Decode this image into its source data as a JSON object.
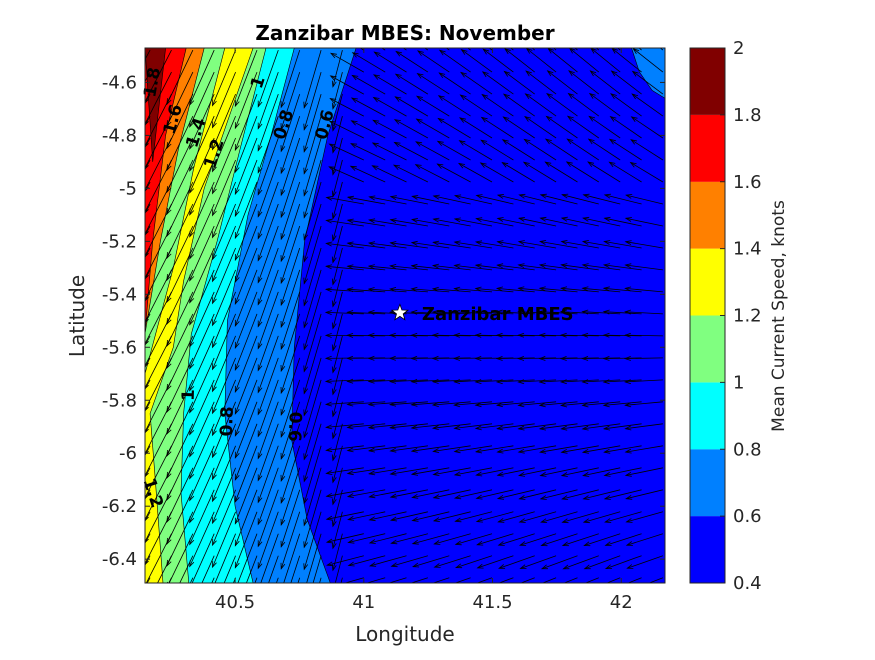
{
  "chart_data": {
    "type": "contourf-quiver",
    "title": "Zanzibar MBES: November",
    "xlabel": "Longitude",
    "ylabel": "Latitude",
    "xlim": [
      40.15,
      42.17
    ],
    "ylim": [
      -6.49,
      -4.47
    ],
    "xticks": [
      40.5,
      41,
      41.5,
      42
    ],
    "xtick_labels": [
      "40.5",
      "41",
      "41.5",
      "42"
    ],
    "yticks": [
      -4.6,
      -4.8,
      -5,
      -5.2,
      -5.4,
      -5.6,
      -5.8,
      -6,
      -6.2,
      -6.4
    ],
    "ytick_labels": [
      "-4.6",
      "-4.8",
      "-5",
      "-5.2",
      "-5.4",
      "-5.6",
      "-5.8",
      "-6",
      "-6.2",
      "-6.4"
    ],
    "colorbar": {
      "label": "Mean Current Speed, knots",
      "levels": [
        0.4,
        0.6,
        0.8,
        1,
        1.2,
        1.4,
        1.6,
        1.8,
        2
      ],
      "tick_labels": [
        "0.4",
        "0.6",
        "0.8",
        "1",
        "1.2",
        "1.4",
        "1.6",
        "1.8",
        "2"
      ],
      "colors": [
        "#0000ff",
        "#0080ff",
        "#00ffff",
        "#80ff80",
        "#ffff00",
        "#ff8000",
        "#ff0000",
        "#800000"
      ]
    },
    "contours": [
      {
        "level": 1.8,
        "label": "1.8",
        "color": "#800000",
        "points": [
          [
            40.15,
            -4.47
          ],
          [
            40.23,
            -4.47
          ],
          [
            40.18,
            -4.9
          ]
        ]
      },
      {
        "level": 1.6,
        "label": "1.6",
        "color": "#ff0000",
        "points": [
          [
            40.15,
            -4.47
          ],
          [
            40.31,
            -4.47
          ],
          [
            40.23,
            -4.8
          ],
          [
            40.18,
            -5.2
          ],
          [
            40.15,
            -5.55
          ]
        ]
      },
      {
        "level": 1.4,
        "label": "1.4",
        "color": "#ff8000",
        "points": [
          [
            40.15,
            -4.47
          ],
          [
            40.38,
            -4.47
          ],
          [
            40.28,
            -4.85
          ],
          [
            40.21,
            -5.2
          ],
          [
            40.15,
            -5.55
          ]
        ]
      },
      {
        "level": 1.2,
        "label": "1.2",
        "color": "#ffff00",
        "points": [
          [
            40.15,
            -4.47
          ],
          [
            40.46,
            -4.47
          ],
          [
            40.34,
            -4.92
          ],
          [
            40.26,
            -5.3
          ],
          [
            40.15,
            -5.7
          ],
          [
            40.15,
            -6.49
          ],
          [
            40.22,
            -6.49
          ],
          [
            40.19,
            -6.1
          ],
          [
            40.17,
            -5.85
          ],
          [
            40.26,
            -5.6
          ],
          [
            40.3,
            -5.35
          ],
          [
            40.38,
            -5.0
          ],
          [
            40.48,
            -4.72
          ],
          [
            40.57,
            -4.47
          ]
        ]
      },
      {
        "level": 1.0,
        "label": "1",
        "color": "#80ff80",
        "points": [
          [
            40.15,
            -4.47
          ],
          [
            40.62,
            -4.47
          ],
          [
            40.52,
            -4.85
          ],
          [
            40.43,
            -5.2
          ],
          [
            40.33,
            -5.55
          ],
          [
            40.3,
            -5.85
          ],
          [
            40.29,
            -6.15
          ],
          [
            40.32,
            -6.49
          ],
          [
            40.15,
            -6.49
          ]
        ]
      },
      {
        "level": 0.8,
        "label": "0.8",
        "color": "#00ffff",
        "points": [
          [
            40.15,
            -4.47
          ],
          [
            40.73,
            -4.47
          ],
          [
            40.64,
            -4.8
          ],
          [
            40.55,
            -5.1
          ],
          [
            40.47,
            -5.5
          ],
          [
            40.46,
            -5.85
          ],
          [
            40.5,
            -6.2
          ],
          [
            40.57,
            -6.49
          ],
          [
            40.15,
            -6.49
          ]
        ]
      },
      {
        "level": 0.6,
        "label": "0.6",
        "color": "#0080ff",
        "points": [
          [
            40.15,
            -4.47
          ],
          [
            40.97,
            -4.47
          ],
          [
            40.86,
            -4.8
          ],
          [
            40.77,
            -5.2
          ],
          [
            40.73,
            -5.6
          ],
          [
            40.72,
            -5.95
          ],
          [
            40.78,
            -6.25
          ],
          [
            40.87,
            -6.49
          ],
          [
            40.15,
            -6.49
          ]
        ]
      },
      {
        "level": 0.6,
        "label": "",
        "color": "#0080ff",
        "points": [
          [
            42.17,
            -4.66
          ],
          [
            42.12,
            -4.63
          ],
          [
            42.07,
            -4.56
          ],
          [
            42.04,
            -4.47
          ],
          [
            42.17,
            -4.47
          ]
        ]
      }
    ],
    "contour_labels": [
      {
        "text": "1.8",
        "x": 40.18,
        "y": -4.6,
        "angle": -80
      },
      {
        "text": "1.6",
        "x": 40.26,
        "y": -4.74,
        "angle": -75
      },
      {
        "text": "1.4",
        "x": 40.35,
        "y": -4.79,
        "angle": -72
      },
      {
        "text": "1.2",
        "x": 40.42,
        "y": -4.87,
        "angle": -72
      },
      {
        "text": "1",
        "x": 40.59,
        "y": -4.6,
        "angle": -72
      },
      {
        "text": "0.8",
        "x": 40.69,
        "y": -4.76,
        "angle": -72
      },
      {
        "text": "0.6",
        "x": 40.85,
        "y": -4.76,
        "angle": -75
      },
      {
        "text": "1",
        "x": 40.32,
        "y": -5.78,
        "angle": -88
      },
      {
        "text": "0.8",
        "x": 40.47,
        "y": -5.88,
        "angle": -88
      },
      {
        "text": "0.6",
        "x": 40.73,
        "y": -5.9,
        "angle": 92
      },
      {
        "text": "1.2",
        "x": 40.18,
        "y": -6.15,
        "angle": 72
      }
    ],
    "station": {
      "name": "Zanzibar MBES",
      "lon": 41.14,
      "lat": -5.47
    }
  }
}
